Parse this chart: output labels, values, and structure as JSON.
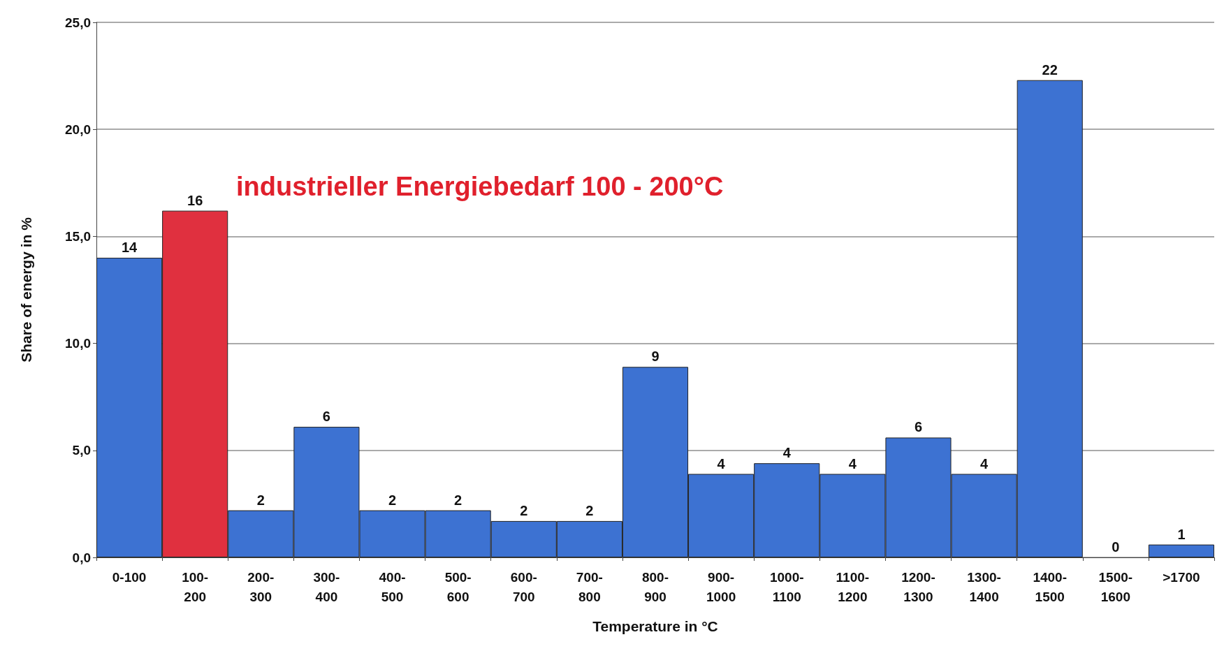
{
  "chart_data": {
    "type": "bar",
    "xlabel": "Temperature in °C",
    "ylabel": "Share of energy in %",
    "annotations": [
      "industrieller Energiebedarf 100 - 200°C"
    ],
    "categories": [
      "0-100",
      "100-200",
      "200-300",
      "300-400",
      "400-500",
      "500-600",
      "600-700",
      "700-800",
      "800-900",
      "900-1000",
      "1000-1100",
      "1100-1200",
      "1200-1300",
      "1300-1400",
      "1400-1500",
      "1500-1600",
      ">1700"
    ],
    "values": [
      14.0,
      16.2,
      2.2,
      6.1,
      2.2,
      2.2,
      1.7,
      1.7,
      8.9,
      3.9,
      4.4,
      3.9,
      5.6,
      3.9,
      22.3,
      0,
      0.6
    ],
    "value_labels": [
      "14",
      "16",
      "2",
      "6",
      "2",
      "2",
      "2",
      "2",
      "9",
      "4",
      "4",
      "4",
      "6",
      "4",
      "22",
      "0",
      "1"
    ],
    "colors": [
      "#3d72d2",
      "#e0303f",
      "#3d72d2",
      "#3d72d2",
      "#3d72d2",
      "#3d72d2",
      "#3d72d2",
      "#3d72d2",
      "#3d72d2",
      "#3d72d2",
      "#3d72d2",
      "#3d72d2",
      "#3d72d2",
      "#3d72d2",
      "#3d72d2",
      "#3d72d2",
      "#3d72d2"
    ],
    "ylim": [
      0,
      25
    ],
    "yticks": [
      {
        "value": 0,
        "label": "0,0"
      },
      {
        "value": 5,
        "label": "5,0"
      },
      {
        "value": 10,
        "label": "10,0"
      },
      {
        "value": 15,
        "label": "15,0"
      },
      {
        "value": 20,
        "label": "20,0"
      },
      {
        "value": 25,
        "label": "25,0"
      }
    ],
    "grid": "y"
  }
}
